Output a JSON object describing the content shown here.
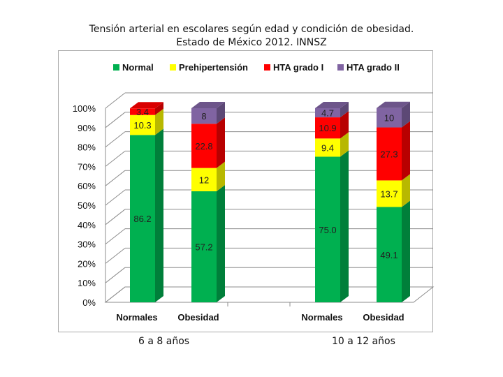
{
  "title_line1": "Tensión arterial en escolares  según edad y condición de obesidad.",
  "title_line2": "Estado de México 2012. INNSZ",
  "group_labels": [
    "6 a 8 años",
    "10 a 12 años"
  ],
  "colors": {
    "Normal": "#00b050",
    "Prehipertensión": "#ffff00",
    "HTA grado I": "#ff0000",
    "HTA grado II": "#8064a2"
  },
  "chart_data": {
    "type": "bar",
    "stacked": "percent",
    "title": "Tensión arterial en escolares  según edad y condición de obesidad. Estado de México 2012. INNSZ",
    "categories": [
      "Normales",
      "Obesidad",
      "Normales",
      "Obesidad"
    ],
    "groups": [
      "6 a 8 años",
      "6 a 8 años",
      "10 a 12 años",
      "10 a 12 años"
    ],
    "series": [
      {
        "name": "Normal",
        "values": [
          86.2,
          57.2,
          75.0,
          49.1
        ],
        "labels": [
          "86.2",
          "57.2",
          "75.0",
          "49.1"
        ]
      },
      {
        "name": "Prehipertensión",
        "values": [
          10.3,
          12,
          9.4,
          13.7
        ],
        "labels": [
          "10.3",
          "12",
          "9.4",
          "13.7"
        ]
      },
      {
        "name": "HTA grado I",
        "values": [
          3.4,
          22.8,
          10.9,
          27.3
        ],
        "labels": [
          "3.4",
          "22.8",
          "10.9",
          "27.3"
        ]
      },
      {
        "name": "HTA grado II",
        "values": [
          0,
          8,
          4.7,
          10
        ],
        "labels": [
          "",
          "8",
          "4.7",
          "10"
        ]
      }
    ],
    "yticks": [
      "0%",
      "10%",
      "20%",
      "30%",
      "40%",
      "50%",
      "60%",
      "70%",
      "80%",
      "90%",
      "100%"
    ],
    "ylim": [
      0,
      100
    ],
    "legend": "top",
    "grid": true
  }
}
